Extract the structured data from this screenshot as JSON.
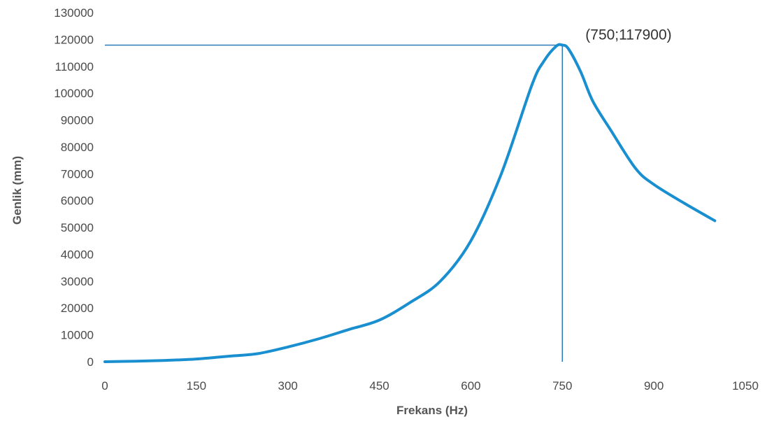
{
  "chart_data": {
    "type": "line",
    "xlabel": "Frekans (Hz)",
    "ylabel": "Genlik (mm)",
    "xlim": [
      0,
      1050
    ],
    "ylim": [
      0,
      130000
    ],
    "x_ticks": [
      "0",
      "150",
      "300",
      "450",
      "600",
      "750",
      "900",
      "1050"
    ],
    "y_ticks": [
      "0",
      "10000",
      "20000",
      "30000",
      "40000",
      "50000",
      "60000",
      "70000",
      "80000",
      "90000",
      "100000",
      "110000",
      "120000",
      "130000"
    ],
    "grid": false,
    "series": [
      {
        "color": "#1a8fd0",
        "points": [
          [
            0,
            0
          ],
          [
            50,
            200
          ],
          [
            100,
            500
          ],
          [
            150,
            1000
          ],
          [
            200,
            2000
          ],
          [
            250,
            3000
          ],
          [
            300,
            5500
          ],
          [
            350,
            8500
          ],
          [
            400,
            12000
          ],
          [
            450,
            15500
          ],
          [
            500,
            22000
          ],
          [
            550,
            30000
          ],
          [
            600,
            45000
          ],
          [
            650,
            70000
          ],
          [
            700,
            103000
          ],
          [
            720,
            112000
          ],
          [
            740,
            117500
          ],
          [
            750,
            117900
          ],
          [
            760,
            116500
          ],
          [
            780,
            108000
          ],
          [
            800,
            97000
          ],
          [
            830,
            86000
          ],
          [
            870,
            72000
          ],
          [
            900,
            66000
          ],
          [
            950,
            59000
          ],
          [
            1000,
            52500
          ]
        ]
      }
    ],
    "reference_lines": {
      "color": "#2a7ab8",
      "x": 750,
      "y": 117900
    },
    "annotation": {
      "text": "(750;117900)",
      "x": 750,
      "y": 117900
    }
  }
}
